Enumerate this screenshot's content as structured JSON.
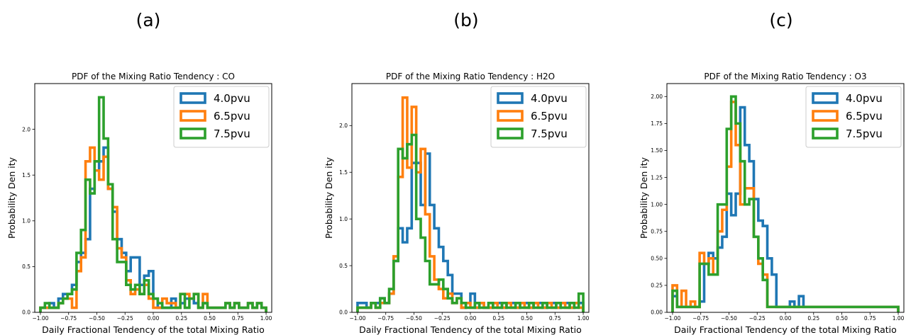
{
  "chart_data": [
    {
      "type": "histogram",
      "panel": "(a)",
      "title": "PDF of the Mixing Ratio Tendency : CO",
      "xlabel": "Daily Fractional Tendency of the total Mixing Ratio",
      "ylabel": "Probability Den ity",
      "xlim": [
        -1.05,
        1.05
      ],
      "ylim": [
        0,
        2.5
      ],
      "xticks": [
        -1.0,
        -0.75,
        -0.5,
        -0.25,
        0.0,
        0.25,
        0.5,
        0.75,
        1.0
      ],
      "xtick_labels": [
        "−1.00",
        "−0.75",
        "−0.50",
        "−0.25",
        "0.00",
        "0.25",
        "0.50",
        "0.75",
        "1.00"
      ],
      "yticks": [
        0.0,
        0.5,
        1.0,
        1.5,
        2.0
      ],
      "ytick_labels": [
        "0.0",
        "0.5",
        "1.0",
        "1.5",
        "2.0"
      ],
      "bins": [
        -1.0,
        0.04
      ],
      "legend_position": "top-right",
      "series": [
        {
          "name": "4.0pvu",
          "color": "#1f77b4",
          "values": [
            0.05,
            0.05,
            0.1,
            0.05,
            0.15,
            0.2,
            0.2,
            0.3,
            0.55,
            0.65,
            0.8,
            1.35,
            1.55,
            1.65,
            1.8,
            1.35,
            1.1,
            0.8,
            0.65,
            0.45,
            0.6,
            0.6,
            0.3,
            0.4,
            0.45,
            0.15,
            0.05,
            0.05,
            0.05,
            0.15,
            0.05,
            0.1,
            0.15,
            0.15,
            0.1,
            0.05,
            0.1,
            0.05,
            0.05,
            0.05,
            0.05,
            0.1,
            0.05,
            0.1,
            0.05,
            0.05,
            0.1,
            0.05,
            0.1,
            0.05
          ]
        },
        {
          "name": "6.5pvu",
          "color": "#ff7f0e",
          "values": [
            0.05,
            0.05,
            0.05,
            0.05,
            0.1,
            0.15,
            0.15,
            0.05,
            0.45,
            0.6,
            1.65,
            1.8,
            1.55,
            1.45,
            1.7,
            1.35,
            1.15,
            0.7,
            0.6,
            0.35,
            0.2,
            0.25,
            0.2,
            0.3,
            0.15,
            0.05,
            0.05,
            0.15,
            0.1,
            0.1,
            0.05,
            0.2,
            0.2,
            0.15,
            0.2,
            0.05,
            0.2,
            0.05,
            0.05,
            0.05,
            0.05,
            0.1,
            0.05,
            0.1,
            0.05,
            0.05,
            0.1,
            0.05,
            0.1,
            0.05
          ]
        },
        {
          "name": "7.5pvu",
          "color": "#2ca02c",
          "values": [
            0.05,
            0.1,
            0.05,
            0.05,
            0.1,
            0.15,
            0.2,
            0.25,
            0.65,
            0.9,
            1.45,
            1.3,
            1.65,
            2.35,
            1.9,
            1.4,
            0.8,
            0.55,
            0.55,
            0.3,
            0.25,
            0.3,
            0.2,
            0.35,
            0.2,
            0.15,
            0.1,
            0.05,
            0.05,
            0.05,
            0.05,
            0.2,
            0.05,
            0.15,
            0.2,
            0.05,
            0.1,
            0.05,
            0.05,
            0.05,
            0.05,
            0.1,
            0.05,
            0.1,
            0.05,
            0.05,
            0.1,
            0.05,
            0.1,
            0.05
          ]
        }
      ]
    },
    {
      "type": "histogram",
      "panel": "(b)",
      "title": "PDF of the Mixing Ratio Tendency : H2O",
      "xlabel": "Daily Fractional Tendency of the total Mixing Ratio",
      "ylabel": "Probability Den ity",
      "xlim": [
        -1.05,
        1.05
      ],
      "ylim": [
        0,
        2.45
      ],
      "xticks": [
        -1.0,
        -0.75,
        -0.5,
        -0.25,
        0.0,
        0.25,
        0.5,
        0.75,
        1.0
      ],
      "xtick_labels": [
        "−1.00",
        "−0.75",
        "−0.50",
        "−0.25",
        "0.00",
        "0.25",
        "0.50",
        "0.75",
        "1.00"
      ],
      "yticks": [
        0.0,
        0.5,
        1.0,
        1.5,
        2.0
      ],
      "ytick_labels": [
        "0.0",
        "0.5",
        "1.0",
        "1.5",
        "2.0"
      ],
      "legend_position": "top-right",
      "series": [
        {
          "name": "4.0pvu",
          "color": "#1f77b4",
          "values": [
            0.1,
            0.1,
            0.05,
            0.1,
            0.1,
            0.15,
            0.1,
            0.2,
            0.55,
            0.9,
            0.75,
            0.9,
            1.6,
            1.6,
            1.15,
            1.7,
            1.15,
            0.9,
            0.7,
            0.55,
            0.4,
            0.2,
            0.2,
            0.05,
            0.1,
            0.2,
            0.05,
            0.1,
            0.05,
            0.05,
            0.1,
            0.1,
            0.05,
            0.1,
            0.1,
            0.05,
            0.1,
            0.1,
            0.05,
            0.1,
            0.1,
            0.05,
            0.1,
            0.1,
            0.05,
            0.1,
            0.1,
            0.05,
            0.1,
            0.1
          ]
        },
        {
          "name": "6.5pvu",
          "color": "#ff7f0e",
          "values": [
            0.05,
            0.05,
            0.05,
            0.1,
            0.05,
            0.1,
            0.1,
            0.2,
            0.6,
            1.45,
            2.3,
            1.55,
            2.2,
            1.5,
            1.75,
            1.05,
            0.6,
            0.35,
            0.25,
            0.15,
            0.2,
            0.1,
            0.15,
            0.05,
            0.1,
            0.05,
            0.05,
            0.1,
            0.05,
            0.05,
            0.1,
            0.05,
            0.05,
            0.1,
            0.05,
            0.05,
            0.1,
            0.05,
            0.05,
            0.1,
            0.05,
            0.05,
            0.1,
            0.05,
            0.05,
            0.1,
            0.05,
            0.05,
            0.1,
            0.05
          ]
        },
        {
          "name": "7.5pvu",
          "color": "#2ca02c",
          "values": [
            0.05,
            0.05,
            0.05,
            0.1,
            0.05,
            0.15,
            0.1,
            0.25,
            0.55,
            1.75,
            1.65,
            1.8,
            1.9,
            1.0,
            0.8,
            0.55,
            0.3,
            0.3,
            0.35,
            0.25,
            0.15,
            0.1,
            0.15,
            0.1,
            0.05,
            0.05,
            0.1,
            0.05,
            0.05,
            0.1,
            0.05,
            0.05,
            0.1,
            0.05,
            0.05,
            0.1,
            0.05,
            0.05,
            0.1,
            0.05,
            0.05,
            0.1,
            0.05,
            0.05,
            0.1,
            0.05,
            0.05,
            0.1,
            0.05,
            0.2
          ]
        }
      ]
    },
    {
      "type": "histogram",
      "panel": "(c)",
      "title": "PDF of the Mixing Ratio Tendency : O3",
      "xlabel": "Daily Fractional Tendency of the total Mixing Ratio",
      "ylabel": "Probability Den ity",
      "xlim": [
        -1.05,
        1.05
      ],
      "ylim": [
        0,
        2.12
      ],
      "xticks": [
        -1.0,
        -0.75,
        -0.5,
        -0.25,
        0.0,
        0.25,
        0.5,
        0.75,
        1.0
      ],
      "xtick_labels": [
        "−1.00",
        "−0.75",
        "−0.50",
        "−0.25",
        "0.00",
        "0.25",
        "0.50",
        "0.75",
        "1.00"
      ],
      "yticks": [
        0.0,
        0.25,
        0.5,
        0.75,
        1.0,
        1.25,
        1.5,
        1.75,
        2.0
      ],
      "ytick_labels": [
        "0.00",
        "0.25",
        "0.50",
        "0.75",
        "1.00",
        "1.25",
        "1.50",
        "1.75",
        "2.00"
      ],
      "legend_position": "top-right",
      "series": [
        {
          "name": "4.0pvu",
          "color": "#1f77b4",
          "values": [
            0.15,
            0.05,
            0.05,
            0.05,
            0.05,
            0.05,
            0.1,
            0.45,
            0.55,
            0.5,
            0.6,
            0.7,
            1.1,
            0.9,
            1.1,
            1.9,
            1.55,
            1.4,
            1.05,
            0.85,
            0.8,
            0.5,
            0.35,
            0.05,
            0.05,
            0.05,
            0.1,
            0.05,
            0.15,
            0.05,
            0.05,
            0.05,
            0.05,
            0.05,
            0.05,
            0.05,
            0.05,
            0.05,
            0.05,
            0.05,
            0.05,
            0.05,
            0.05,
            0.05,
            0.05,
            0.05,
            0.05,
            0.05,
            0.05,
            0.05
          ]
        },
        {
          "name": "6.5pvu",
          "color": "#ff7f0e",
          "values": [
            0.25,
            0.05,
            0.2,
            0.05,
            0.1,
            0.05,
            0.55,
            0.45,
            0.5,
            0.35,
            0.75,
            0.95,
            1.35,
            1.95,
            1.55,
            1.0,
            1.15,
            1.15,
            0.7,
            0.45,
            0.35,
            0.05,
            0.05,
            0.05,
            0.05,
            0.05,
            0.05,
            0.05,
            0.05,
            0.05,
            0.05,
            0.05,
            0.05,
            0.05,
            0.05,
            0.05,
            0.05,
            0.05,
            0.05,
            0.05,
            0.05,
            0.05,
            0.05,
            0.05,
            0.05,
            0.05,
            0.05,
            0.05,
            0.05,
            0.05
          ]
        },
        {
          "name": "7.5pvu",
          "color": "#2ca02c",
          "values": [
            0.2,
            0.05,
            0.05,
            0.05,
            0.05,
            0.05,
            0.45,
            0.45,
            0.35,
            0.35,
            1.0,
            1.0,
            1.7,
            2.0,
            1.75,
            1.4,
            1.0,
            1.05,
            0.7,
            0.5,
            0.3,
            0.05,
            0.05,
            0.05,
            0.05,
            0.05,
            0.05,
            0.05,
            0.05,
            0.05,
            0.05,
            0.05,
            0.05,
            0.05,
            0.05,
            0.05,
            0.05,
            0.05,
            0.05,
            0.05,
            0.05,
            0.05,
            0.05,
            0.05,
            0.05,
            0.05,
            0.05,
            0.05,
            0.05,
            0.05
          ]
        }
      ]
    }
  ]
}
